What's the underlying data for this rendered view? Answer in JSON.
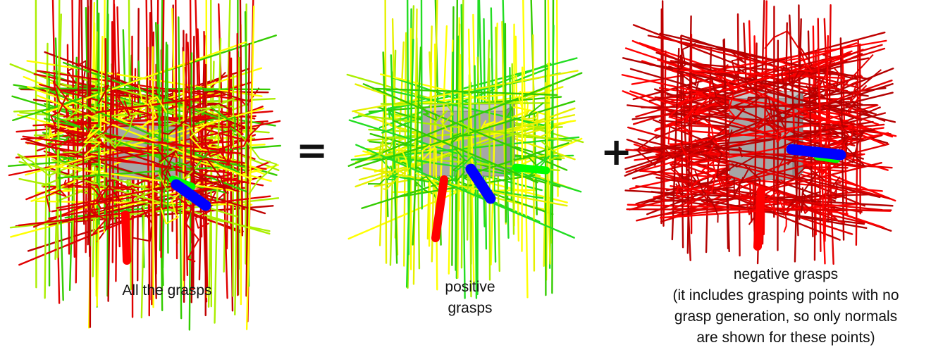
{
  "figure": {
    "panels": [
      {
        "id": "all",
        "caption": "All the grasps",
        "palette": [
          "#e00000",
          "#e00000",
          "#c00000",
          "#ffff00",
          "#33cc00",
          "#aaee00"
        ]
      },
      {
        "id": "positive",
        "caption": "positive\ngrasps",
        "palette": [
          "#ffff00",
          "#e6f000",
          "#33cc00",
          "#22dd22",
          "#aaee00"
        ]
      },
      {
        "id": "negative",
        "caption": "negative grasps\n(it includes grasping points with no\ngrasp generation, so only normals\nare shown for these points)",
        "palette": [
          "#ff0000",
          "#e00000",
          "#c00000",
          "#b30000"
        ]
      }
    ],
    "operators": {
      "equals": "=",
      "plus": "+"
    },
    "colors": {
      "object": "#a6a6a6",
      "axis_z": "#0000ff",
      "axis_x": "#ff0000",
      "axis_y": "#00ff00"
    }
  }
}
